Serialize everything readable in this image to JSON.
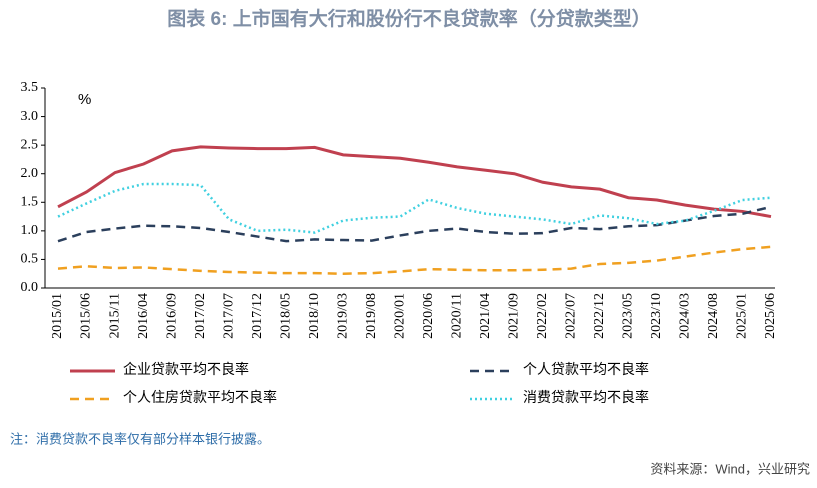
{
  "chart_data": {
    "type": "line",
    "title": "图表 6:  上市国有大行和股份行不良贷款率（分贷款类型）",
    "y_unit": "%",
    "note": "注：消费贷款不良率仅有部分样本银行披露。",
    "source": "资料来源：Wind，兴业研究",
    "categories": [
      "2015/01",
      "2015/06",
      "2015/11",
      "2016/04",
      "2016/09",
      "2017/02",
      "2017/07",
      "2017/12",
      "2018/05",
      "2018/10",
      "2019/03",
      "2019/08",
      "2020/01",
      "2020/06",
      "2020/11",
      "2021/04",
      "2021/09",
      "2022/02",
      "2022/07",
      "2022/12",
      "2023/05",
      "2023/10",
      "2024/03",
      "2024/08",
      "2025/01",
      "2025/06"
    ],
    "ylim": [
      0,
      3.5
    ],
    "yticks": [
      {
        "value": 0,
        "label": "0.0"
      },
      0.5,
      {
        "value": 1,
        "label": "1.0"
      },
      1.5,
      {
        "value": 2,
        "label": "2.0"
      },
      2.5,
      {
        "value": 3,
        "label": "3.0"
      },
      3.5
    ],
    "series": [
      {
        "name": "企业贷款平均不良率",
        "color": "#c0404f",
        "style": "solid",
        "values": [
          1.42,
          1.68,
          2.02,
          2.17,
          2.4,
          2.47,
          2.45,
          2.44,
          2.44,
          2.46,
          2.33,
          2.3,
          2.27,
          2.2,
          2.12,
          2.06,
          2.0,
          1.85,
          1.77,
          1.73,
          1.58,
          1.54,
          1.45,
          1.38,
          1.34,
          1.25
        ]
      },
      {
        "name": "个人贷款平均不良率",
        "color": "#2b3f5c",
        "style": "dashed",
        "values": [
          0.82,
          0.98,
          1.04,
          1.09,
          1.08,
          1.05,
          0.98,
          0.9,
          0.82,
          0.85,
          0.84,
          0.83,
          0.92,
          1.0,
          1.04,
          0.98,
          0.95,
          0.96,
          1.05,
          1.03,
          1.08,
          1.1,
          1.18,
          1.26,
          1.3,
          1.42
        ]
      },
      {
        "name": "个人住房贷款平均不良率",
        "color": "#f0a020",
        "style": "dashed",
        "values": [
          0.34,
          0.38,
          0.35,
          0.36,
          0.33,
          0.3,
          0.28,
          0.27,
          0.26,
          0.26,
          0.25,
          0.26,
          0.29,
          0.33,
          0.32,
          0.31,
          0.31,
          0.32,
          0.34,
          0.42,
          0.44,
          0.48,
          0.55,
          0.62,
          0.68,
          0.72
        ]
      },
      {
        "name": "消费贷款平均不良率",
        "color": "#40d0e0",
        "style": "dotted",
        "values": [
          1.25,
          1.48,
          1.7,
          1.82,
          1.82,
          1.8,
          1.2,
          1.0,
          1.02,
          0.97,
          1.18,
          1.23,
          1.25,
          1.55,
          1.4,
          1.3,
          1.25,
          1.2,
          1.12,
          1.27,
          1.22,
          1.12,
          1.18,
          1.35,
          1.54,
          1.58
        ]
      }
    ]
  }
}
